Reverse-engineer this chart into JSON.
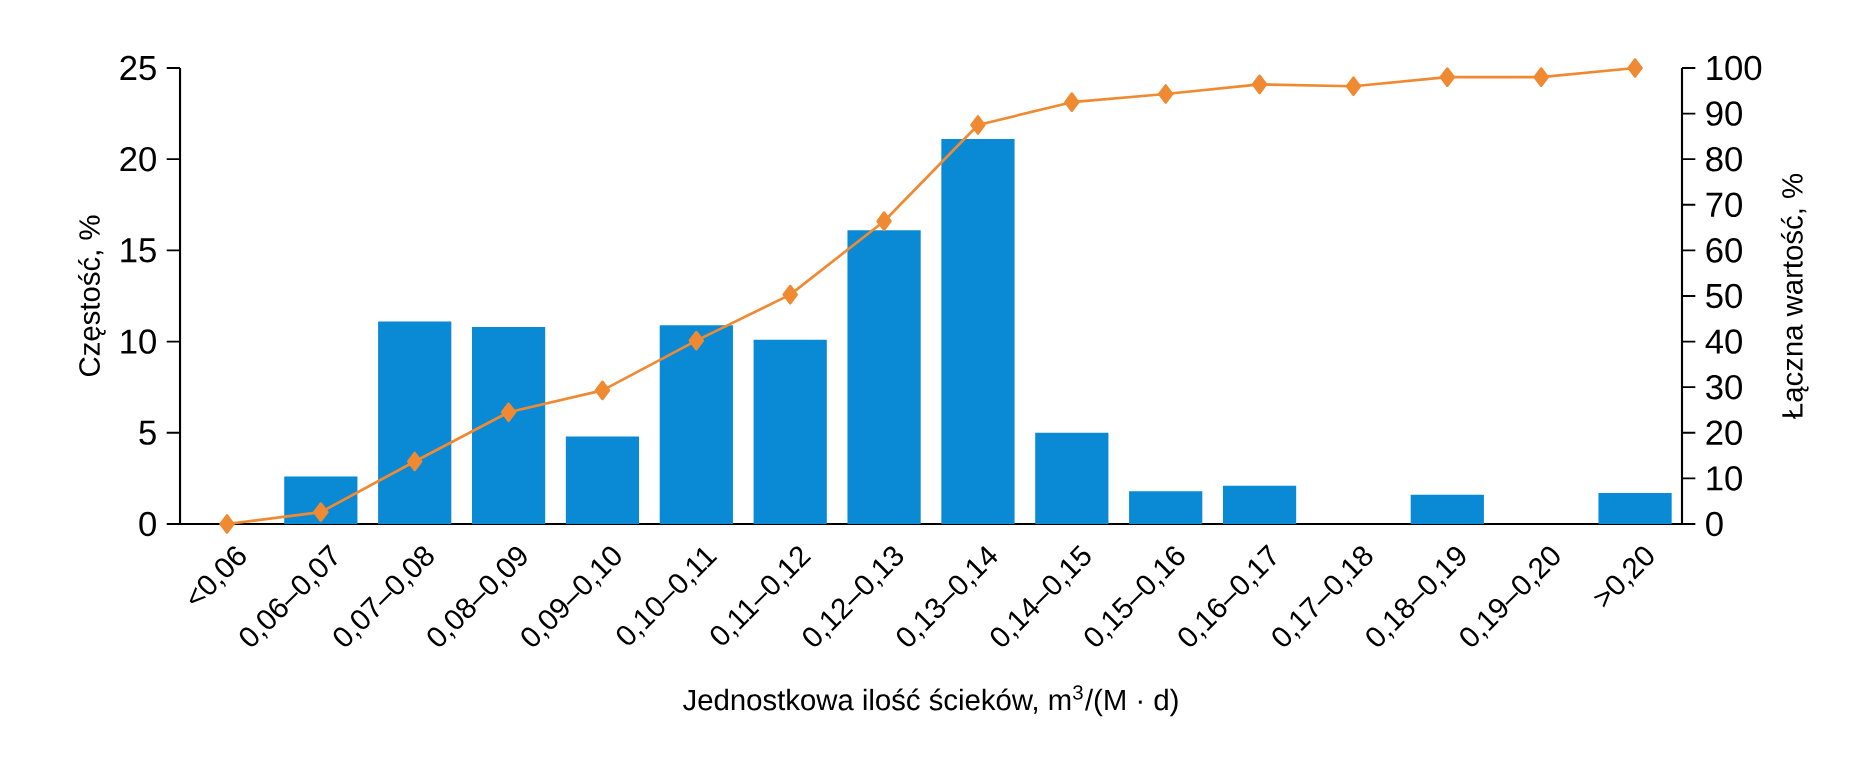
{
  "chart_data": {
    "type": "bar",
    "xlabel": "Jednostkowa ilość ścieków, m$^{3}$/(M · d)",
    "ylabel": "Częstość, %",
    "y2label": "Łączna wartość, %",
    "categories": [
      "<0,06",
      "0,06–0,07",
      "0,07–0,08",
      "0,08–0,09",
      "0,09–0,10",
      "0,10–0,11",
      "0,11–0,12",
      "0,12–0,13",
      "0,13–0,14",
      "0,14–0,15",
      "0,15–0,16",
      "0,16–0,17",
      "0,17–0,18",
      "0,18–0,19",
      "0,19–0,20",
      ">0,20"
    ],
    "series": [
      {
        "color": "#0a8ad4",
        "values": [
          0,
          2.6,
          11.1,
          10.8,
          4.8,
          10.9,
          10.1,
          16.1,
          21.1,
          5.0,
          1.8,
          2.1,
          0,
          1.6,
          0,
          1.7
        ]
      },
      {
        "type": "line",
        "axis": "y2",
        "color": "#f08a32",
        "marker": "diamond",
        "values": [
          0,
          2.6,
          13.7,
          24.5,
          29.3,
          40.2,
          50.3,
          66.4,
          87.5,
          92.5,
          94.3,
          96.4,
          96,
          98,
          98,
          100
        ]
      }
    ],
    "ylim": [
      0,
      25
    ],
    "yticks": [
      0,
      5,
      10,
      15,
      20,
      25
    ],
    "y2lim": [
      0,
      100
    ],
    "y2ticks": [
      0,
      10,
      20,
      30,
      40,
      50,
      60,
      70,
      80,
      90,
      100
    ],
    "grid": false
  }
}
